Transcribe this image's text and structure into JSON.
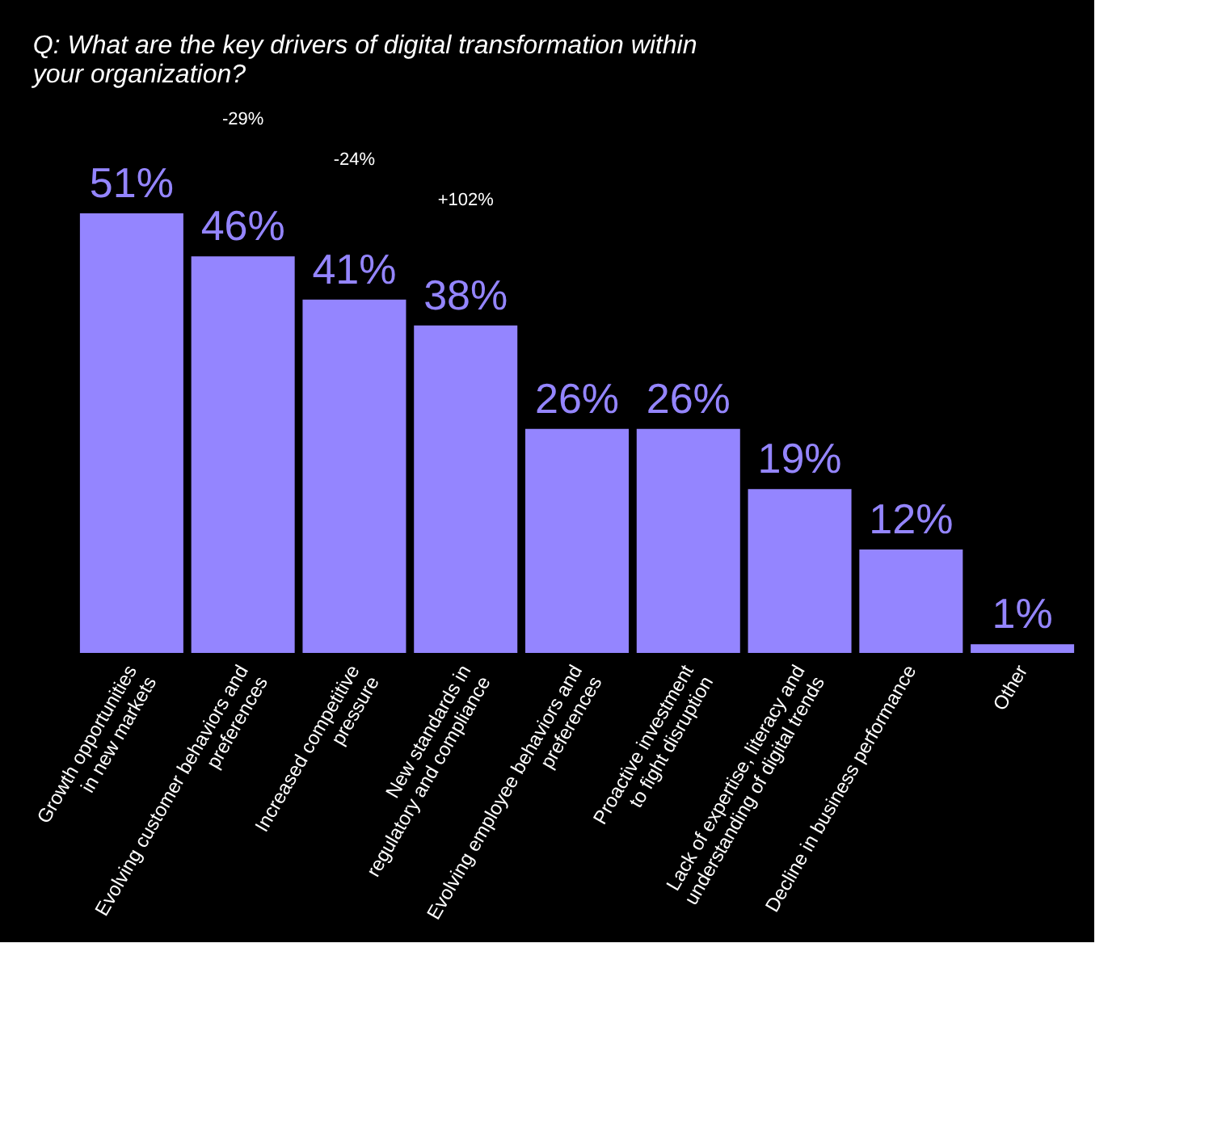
{
  "chart_data": {
    "type": "bar",
    "title": "Q: What are the key drivers of digital transformation within\nyour organization?",
    "categories": [
      "Growth opportunities\nin new markets",
      "Evolving customer behaviors and\npreferences",
      "Increased competitive\npressure",
      "New standards in\nregulatory and compliance",
      "Evolving employee behaviors and\npreferences",
      "Proactive investment\nto fight disruption",
      "Lack of expertise, literacy and\nunderstanding of digital trends",
      "Decline in business performance",
      "Other"
    ],
    "values": [
      51,
      46,
      41,
      38,
      26,
      26,
      19,
      12,
      1
    ],
    "value_labels": [
      "51%",
      "46%",
      "41%",
      "38%",
      "26%",
      "26%",
      "19%",
      "12%",
      "1%"
    ],
    "color": "#9485ff",
    "annotations": [
      "-29%",
      "-24%",
      "+102%"
    ]
  }
}
